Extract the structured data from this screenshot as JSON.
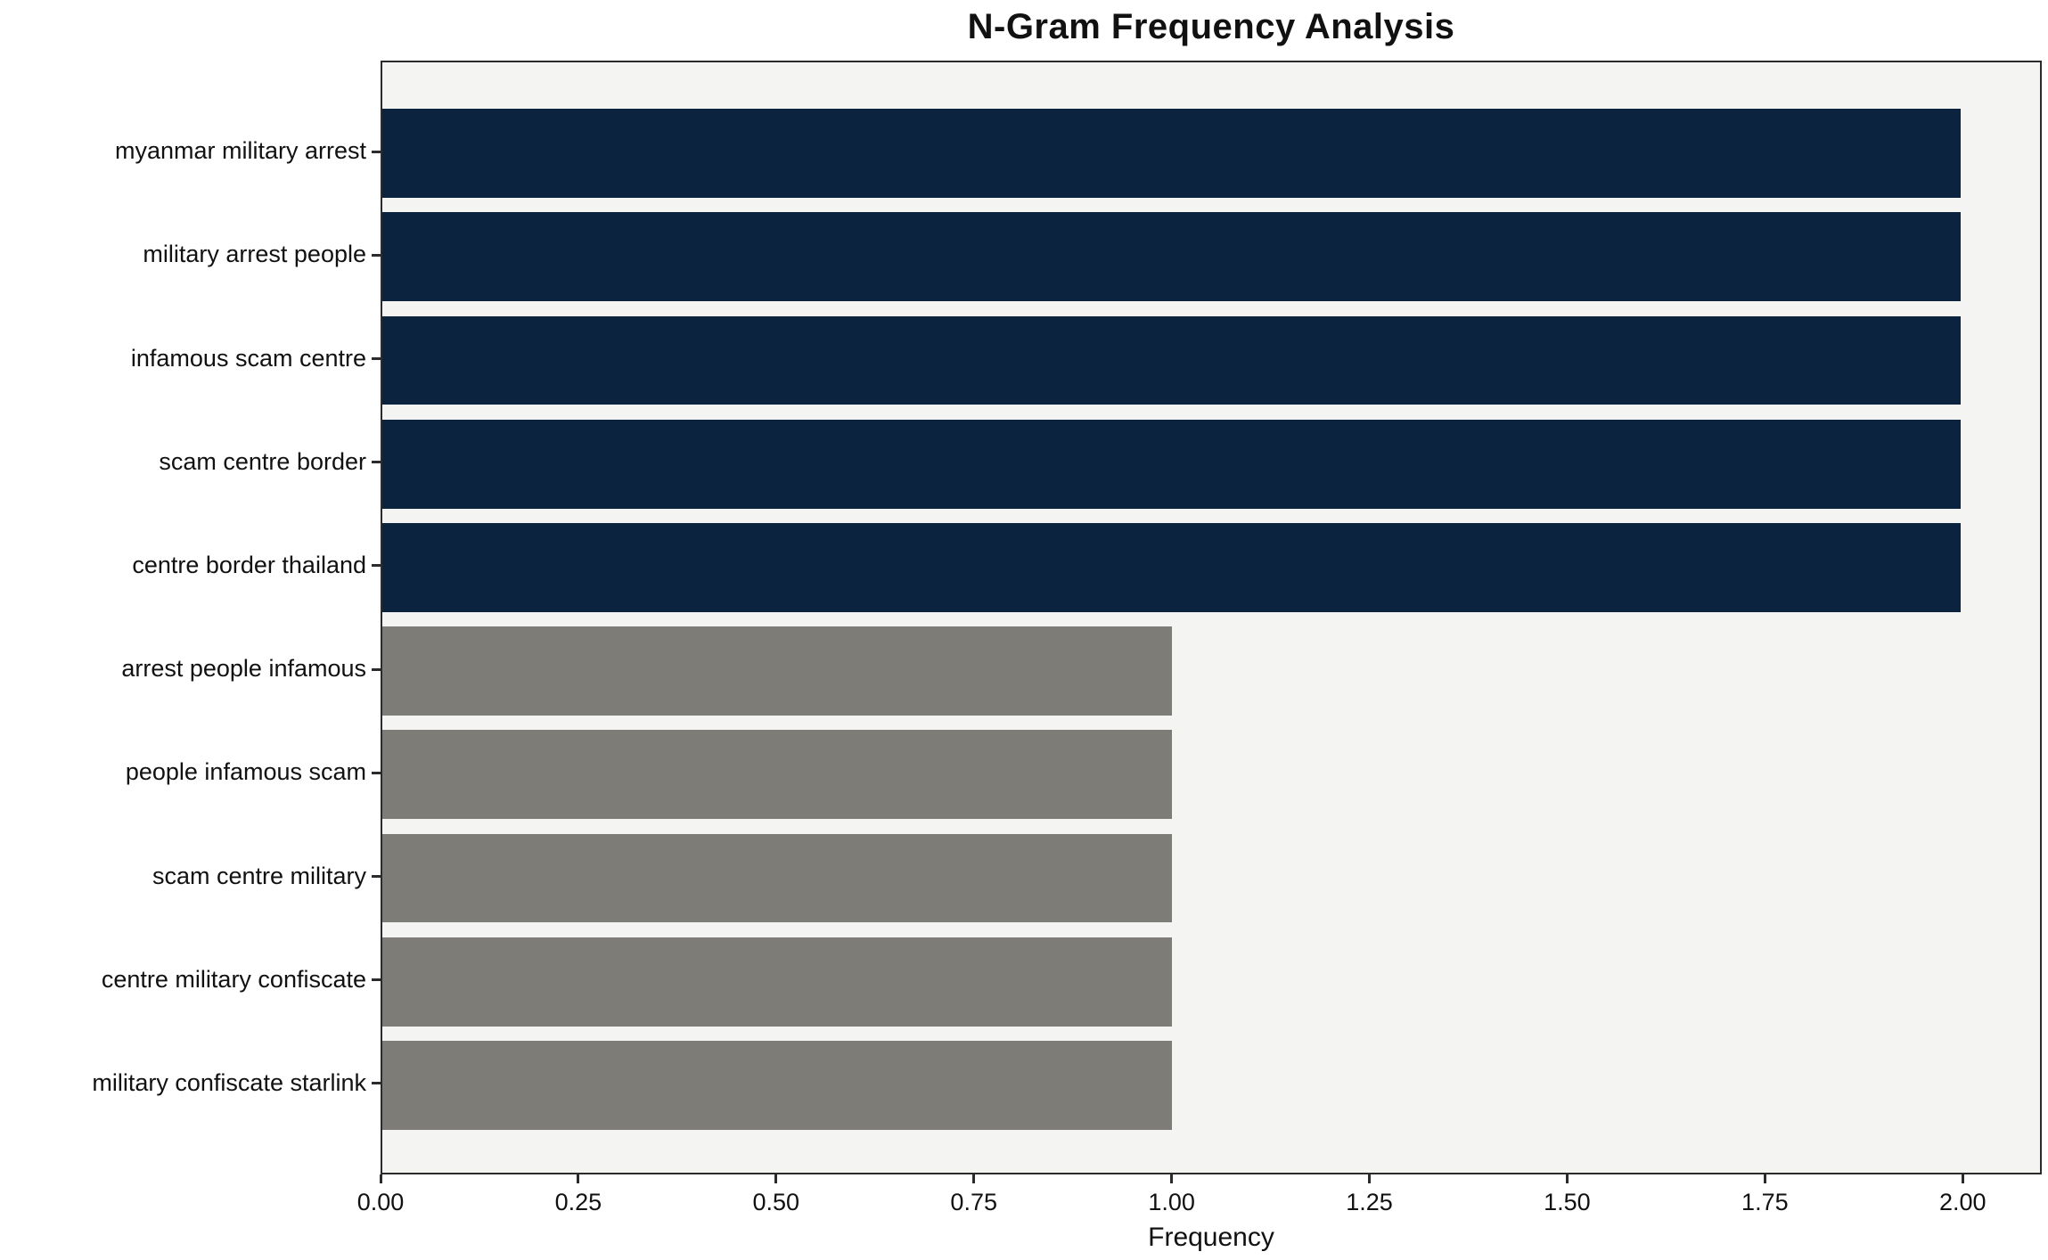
{
  "chart_data": {
    "type": "bar",
    "orientation": "horizontal",
    "title": "N-Gram Frequency Analysis",
    "xlabel": "Frequency",
    "ylabel": "",
    "categories": [
      "myanmar military arrest",
      "military arrest people",
      "infamous scam centre",
      "scam centre border",
      "centre border thailand",
      "arrest people infamous",
      "people infamous scam",
      "scam centre military",
      "centre military confiscate",
      "military confiscate starlink"
    ],
    "values": [
      2,
      2,
      2,
      2,
      2,
      1,
      1,
      1,
      1,
      1
    ],
    "bar_colors": [
      "#0c2340",
      "#0c2340",
      "#0c2340",
      "#0c2340",
      "#0c2340",
      "#7d7c77",
      "#7d7c77",
      "#7d7c77",
      "#7d7c77",
      "#7d7c77"
    ],
    "xlim": [
      0,
      2.1
    ],
    "xticks": [
      0,
      0.25,
      0.5,
      0.75,
      1.0,
      1.25,
      1.5,
      1.75,
      2.0
    ],
    "xtick_labels": [
      "0.00",
      "0.25",
      "0.50",
      "0.75",
      "1.00",
      "1.25",
      "1.50",
      "1.75",
      "2.00"
    ],
    "grid": false,
    "legend": "none",
    "plot_background": "#f4f4f2",
    "figure_background": "#ffffff"
  }
}
